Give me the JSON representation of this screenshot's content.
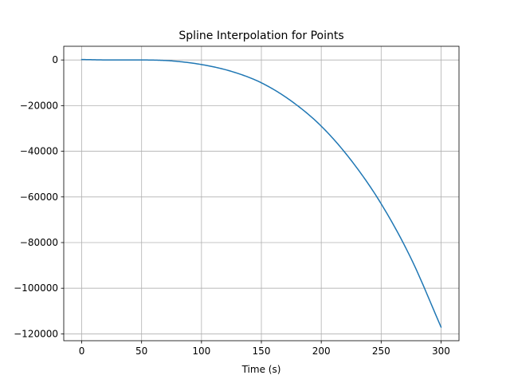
{
  "chart_data": {
    "type": "line",
    "title": "Spline Interpolation for Points",
    "xlabel": "Time (s)",
    "ylabel": "",
    "xlim": [
      -15,
      315
    ],
    "ylim": [
      -123000,
      6000
    ],
    "grid": true,
    "x_ticks": [
      0,
      50,
      100,
      150,
      200,
      250,
      300
    ],
    "x_tick_labels": [
      "0",
      "50",
      "100",
      "150",
      "200",
      "250",
      "300"
    ],
    "y_ticks": [
      0,
      -20000,
      -40000,
      -60000,
      -80000,
      -100000,
      -120000
    ],
    "y_tick_labels": [
      "0",
      "−20000",
      "−40000",
      "−60000",
      "−80000",
      "−100000",
      "−120000"
    ],
    "line_color": "#1f77b4",
    "grid_color": "#b0b0b0",
    "series": [
      {
        "x": [
          0,
          25,
          50,
          60,
          75,
          100,
          125,
          150,
          175,
          200,
          225,
          250,
          275,
          300
        ],
        "y": [
          200,
          0,
          0,
          -50,
          -400,
          -2000,
          -5000,
          -10000,
          -18000,
          -29000,
          -44000,
          -63000,
          -87000,
          -117000
        ]
      }
    ]
  }
}
